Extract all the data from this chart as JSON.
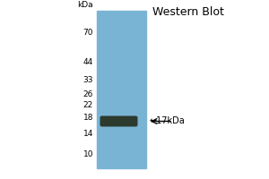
{
  "title": "Western Blot",
  "bg_color": "#f0f0f0",
  "gel_color": "#7ab4d4",
  "band_color": "#2d3a2e",
  "markers": [
    70,
    44,
    33,
    26,
    22,
    18,
    14,
    10
  ],
  "kda_label": "kDa",
  "band_kda": 17,
  "arrow_label": "←17kDa",
  "title_fontsize": 9,
  "marker_fontsize": 6.5,
  "arrow_fontsize": 7
}
